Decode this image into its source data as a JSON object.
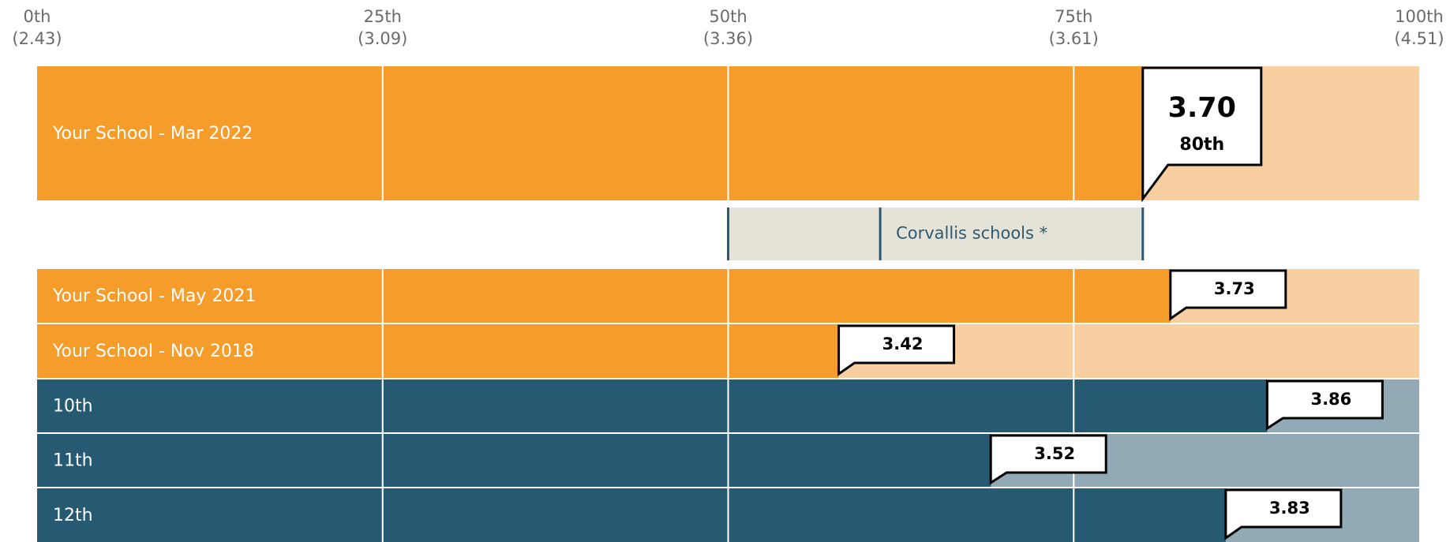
{
  "chart_data": {
    "type": "percentile_bar",
    "xlim": [
      0,
      100
    ],
    "xticks": [
      {
        "value": 0,
        "label": "0th"
      },
      {
        "value": 25,
        "label": "25th"
      },
      {
        "value": 50,
        "label": "50th"
      },
      {
        "value": 75,
        "label": "75th"
      },
      {
        "value": 100,
        "label": "100th"
      }
    ],
    "tick_score_labels": [
      "(2.43)",
      "(3.09)",
      "(3.36)",
      "(3.61)",
      "(4.51)"
    ],
    "grid": true,
    "rows": [
      {
        "name": "Your School - Mar 2022",
        "color": "#f59c2a",
        "track_color": "#f8cfa0",
        "percentile": 80,
        "score_label": "3.70",
        "percentile_label": "80th",
        "featured": true
      },
      {
        "name": "Your School - May 2021",
        "color": "#f59c2a",
        "track_color": "#f8cfa0",
        "percentile": 82,
        "score_label": "3.73"
      },
      {
        "name": "Your School - Nov 2018",
        "color": "#f59c2a",
        "track_color": "#f8cfa0",
        "percentile": 58,
        "score_label": "3.42"
      },
      {
        "name": "10th",
        "color": "#265a72",
        "track_color": "#92aab6",
        "percentile": 89,
        "score_label": "3.86"
      },
      {
        "name": "11th",
        "color": "#265a72",
        "track_color": "#92aab6",
        "percentile": 69,
        "score_label": "3.52"
      },
      {
        "name": "12th",
        "color": "#265a72",
        "track_color": "#92aab6",
        "percentile": 86,
        "score_label": "3.83"
      }
    ],
    "range": {
      "name": "Corvallis schools *",
      "low": 50,
      "median": 61,
      "high": 80,
      "color": "#e5e2d8",
      "line_color": "#2d5a70"
    }
  }
}
